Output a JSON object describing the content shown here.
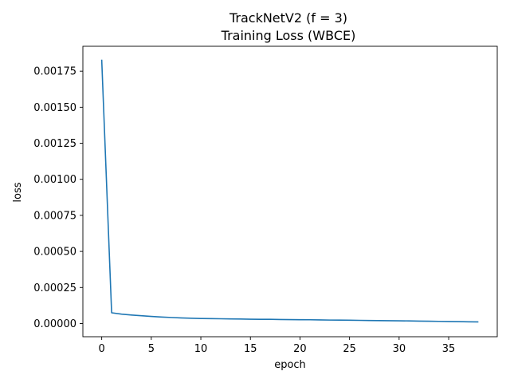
{
  "chart_data": {
    "type": "line",
    "title": "TrackNetV2 (f = 3)",
    "subtitle": "Training Loss (WBCE)",
    "xlabel": "epoch",
    "ylabel": "loss",
    "xlim": [
      -1.9,
      39.9
    ],
    "ylim": [
      -9.15e-05,
      0.0019225
    ],
    "xticks": [
      0,
      5,
      10,
      15,
      20,
      25,
      30,
      35
    ],
    "xtick_labels": [
      "0",
      "5",
      "10",
      "15",
      "20",
      "25",
      "30",
      "35"
    ],
    "yticks": [
      0,
      0.00025,
      0.0005,
      0.00075,
      0.001,
      0.00125,
      0.0015,
      0.00175
    ],
    "ytick_labels": [
      "0.00000",
      "0.00025",
      "0.00050",
      "0.00075",
      "0.00100",
      "0.00125",
      "0.00150",
      "0.00175"
    ],
    "grid": false,
    "series": [
      {
        "color": "#1f77b4",
        "x": [
          0,
          1,
          2,
          3,
          4,
          5,
          6,
          7,
          8,
          9,
          10,
          11,
          12,
          13,
          14,
          15,
          16,
          17,
          18,
          19,
          20,
          21,
          22,
          23,
          24,
          25,
          26,
          27,
          28,
          29,
          30,
          31,
          32,
          33,
          34,
          35,
          36,
          37,
          38
        ],
        "y": [
          0.00183,
          7.45e-05,
          6.5e-05,
          5.9e-05,
          5.4e-05,
          4.9e-05,
          4.5e-05,
          4.2e-05,
          3.9e-05,
          3.7e-05,
          3.5e-05,
          3.4e-05,
          3.3e-05,
          3.2e-05,
          3.1e-05,
          3e-05,
          2.9e-05,
          2.9e-05,
          2.8e-05,
          2.7e-05,
          2.65e-05,
          2.6e-05,
          2.5e-05,
          2.4e-05,
          2.35e-05,
          2.3e-05,
          2.2e-05,
          2.1e-05,
          2e-05,
          1.95e-05,
          1.9e-05,
          1.8e-05,
          1.7e-05,
          1.6e-05,
          1.5e-05,
          1.4e-05,
          1.3e-05,
          1.2e-05,
          1.1e-05
        ]
      }
    ]
  }
}
